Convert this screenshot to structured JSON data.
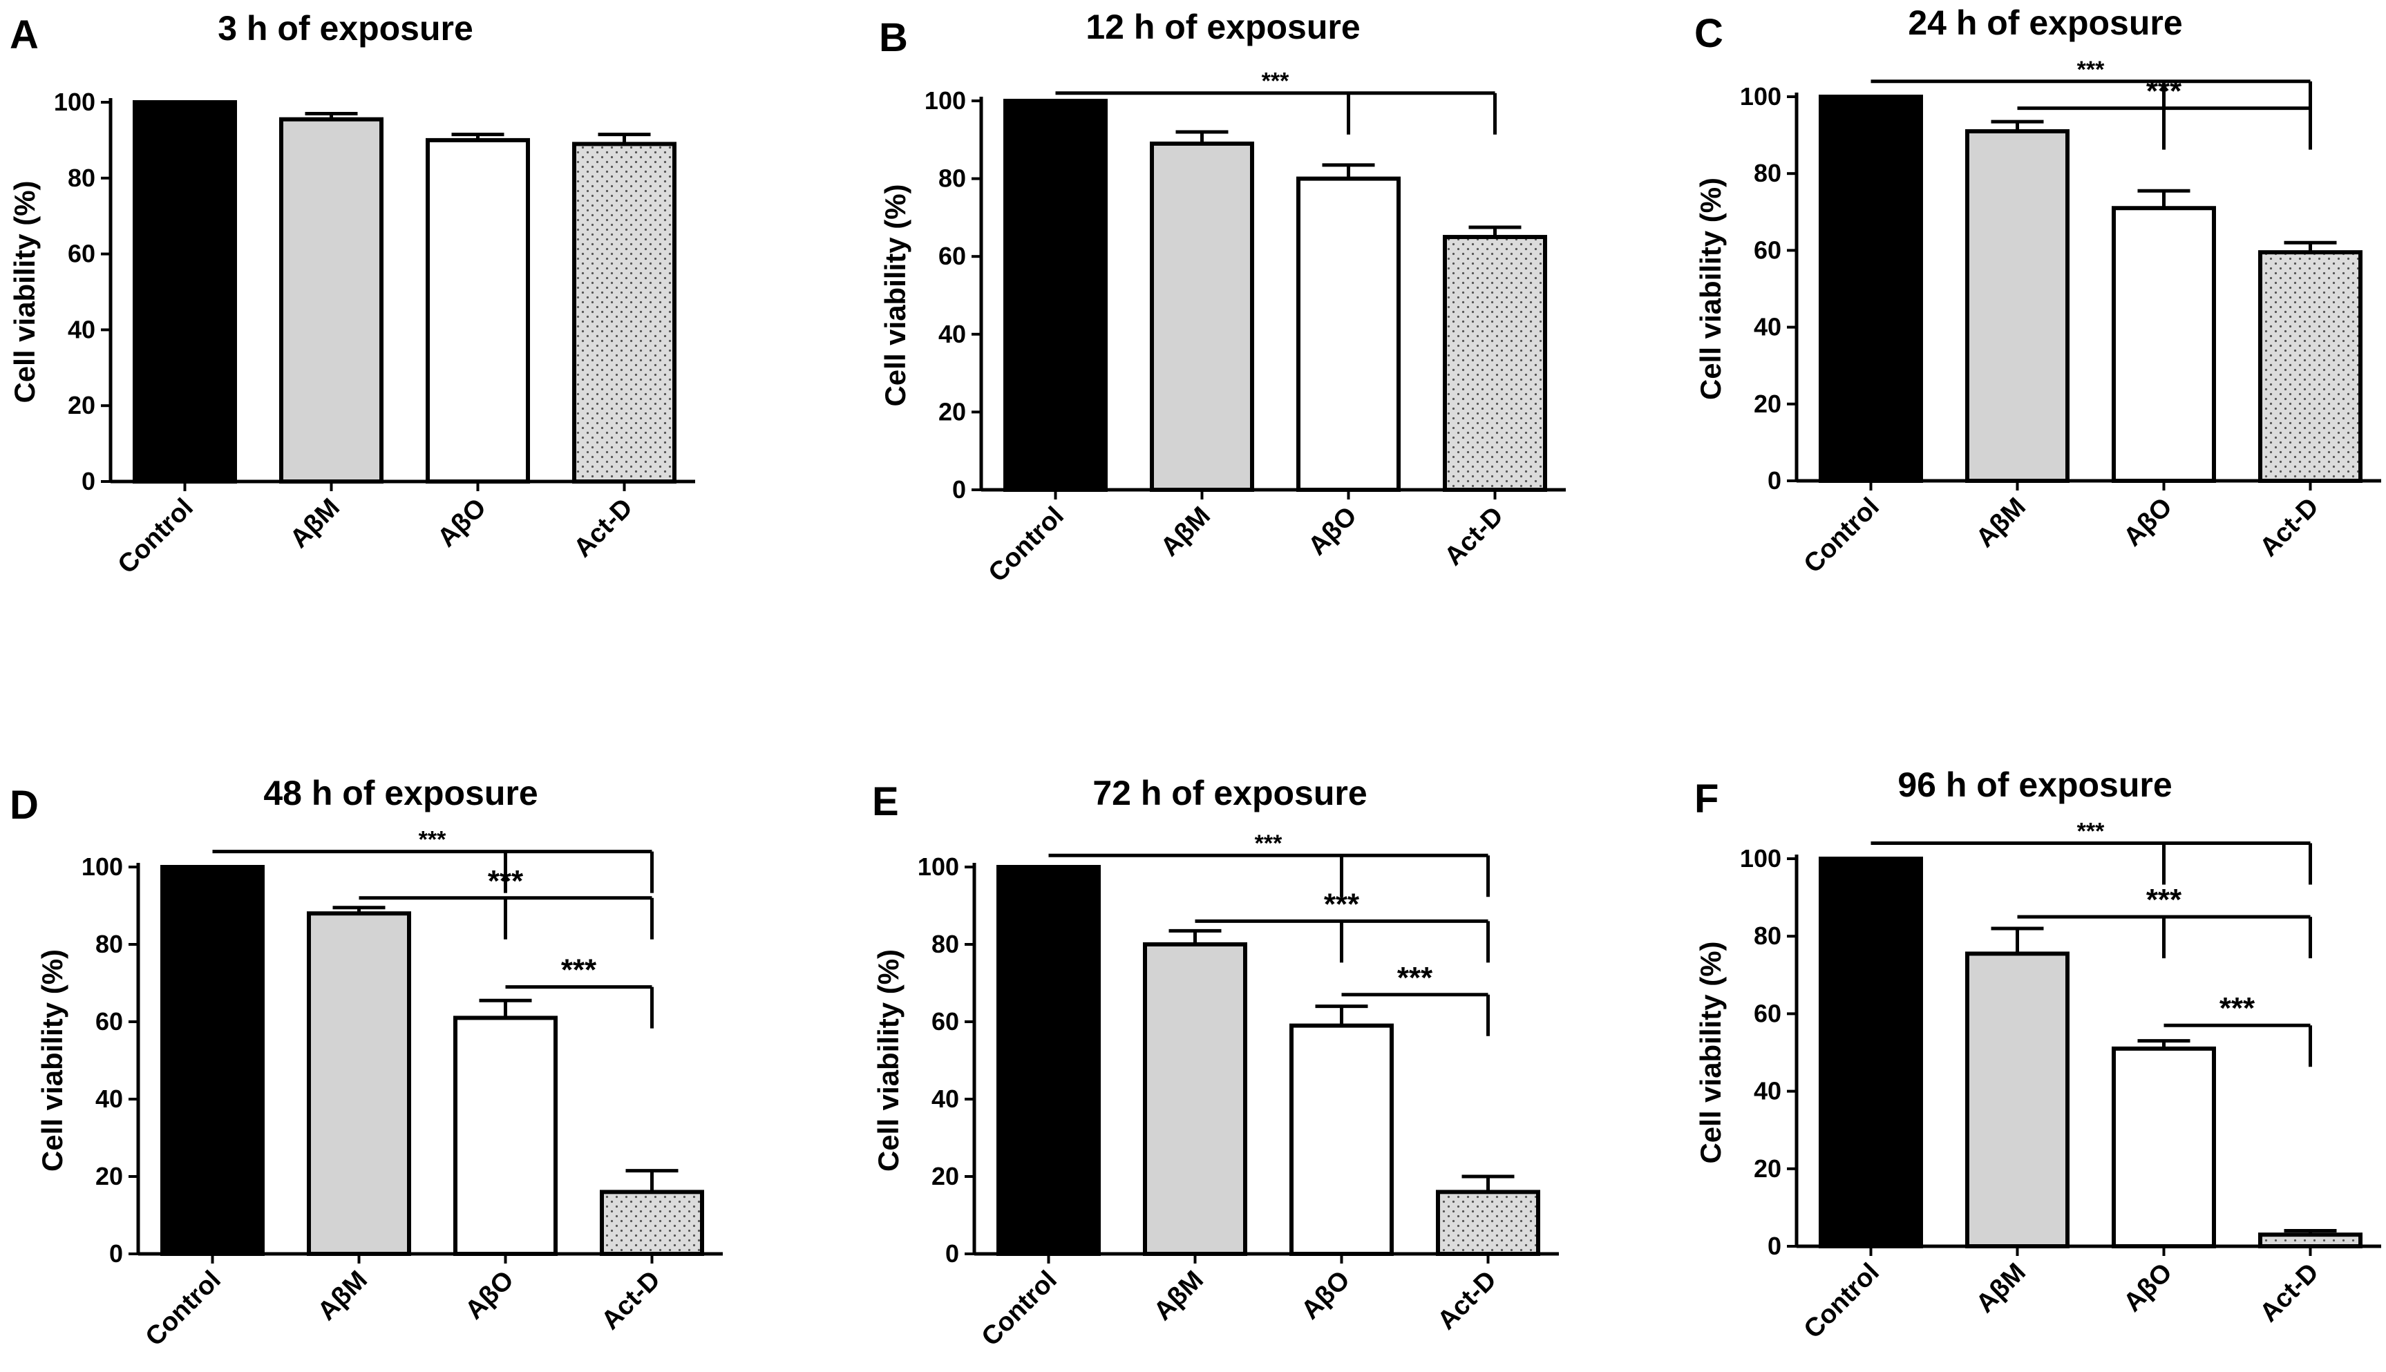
{
  "colors": {
    "control": "#000000",
    "abm": "#d3d3d3",
    "abo": "#ffffff",
    "actd": "#dcdcdc",
    "stroke": "#000000"
  },
  "chart_data": [
    {
      "panel": "A",
      "type": "bar",
      "title": "3 h of exposure",
      "ylabel": "Cell viability (%)",
      "xlabel": "",
      "ylim": [
        0,
        100
      ],
      "yticks": [
        "0",
        "20",
        "40",
        "60",
        "80",
        "100"
      ],
      "categories": [
        "Control",
        "AβM",
        "AβO",
        "Act-D"
      ],
      "values": [
        100,
        95.5,
        90,
        89
      ],
      "errors": [
        0,
        1.5,
        1.5,
        2.5
      ],
      "significance": []
    },
    {
      "panel": "B",
      "type": "bar",
      "title": "12 h of exposure",
      "ylabel": "Cell viability (%)",
      "xlabel": "",
      "ylim": [
        0,
        100
      ],
      "yticks": [
        "0",
        "20",
        "40",
        "60",
        "80",
        "100"
      ],
      "categories": [
        "Control",
        "AβM",
        "AβO",
        "Act-D"
      ],
      "values": [
        100,
        89,
        80,
        65
      ],
      "errors": [
        0,
        3,
        3.5,
        2.5
      ],
      "significance": [
        {
          "from": 0,
          "to": 3,
          "drops": [
            2,
            3
          ],
          "level": 102,
          "label": "***"
        }
      ]
    },
    {
      "panel": "C",
      "type": "bar",
      "title": "24 h of exposure",
      "ylabel": "Cell viability (%)",
      "xlabel": "",
      "ylim": [
        0,
        100
      ],
      "yticks": [
        "0",
        "20",
        "40",
        "60",
        "80",
        "100"
      ],
      "categories": [
        "Control",
        "AβM",
        "AβO",
        "Act-D"
      ],
      "values": [
        100,
        91,
        71,
        59.5
      ],
      "errors": [
        0,
        2.5,
        4.5,
        2.5
      ],
      "significance": [
        {
          "from": 0,
          "to": 3,
          "drops": [
            2,
            3
          ],
          "level": 104,
          "label": "***"
        },
        {
          "from": 1,
          "to": 3,
          "drops": [
            2,
            3
          ],
          "level": 97,
          "label": "***"
        }
      ]
    },
    {
      "panel": "D",
      "type": "bar",
      "title": "48 h of exposure",
      "ylabel": "Cell viability (%)",
      "xlabel": "",
      "ylim": [
        0,
        100
      ],
      "yticks": [
        "0",
        "20",
        "40",
        "60",
        "80",
        "100"
      ],
      "categories": [
        "Control",
        "AβM",
        "AβO",
        "Act-D"
      ],
      "values": [
        100,
        88,
        61,
        16
      ],
      "errors": [
        0,
        1.5,
        4.5,
        5.5
      ],
      "significance": [
        {
          "from": 0,
          "to": 3,
          "drops": [
            2,
            3
          ],
          "level": 104,
          "label": "***"
        },
        {
          "from": 1,
          "to": 3,
          "drops": [
            2,
            3
          ],
          "level": 92,
          "label": "***"
        },
        {
          "from": 2,
          "to": 3,
          "drops": [
            3
          ],
          "level": 69,
          "label": "***"
        }
      ]
    },
    {
      "panel": "E",
      "type": "bar",
      "title": "72 h of exposure",
      "ylabel": "Cell viability (%)",
      "xlabel": "",
      "ylim": [
        0,
        100
      ],
      "yticks": [
        "0",
        "20",
        "40",
        "60",
        "80",
        "100"
      ],
      "categories": [
        "Control",
        "AβM",
        "AβO",
        "Act-D"
      ],
      "values": [
        100,
        80,
        59,
        16
      ],
      "errors": [
        0,
        3.5,
        5,
        4
      ],
      "significance": [
        {
          "from": 0,
          "to": 3,
          "drops": [
            2,
            3
          ],
          "level": 103,
          "label": "***"
        },
        {
          "from": 1,
          "to": 3,
          "drops": [
            2,
            3
          ],
          "level": 86,
          "label": "***"
        },
        {
          "from": 2,
          "to": 3,
          "drops": [
            3
          ],
          "level": 67,
          "label": "***"
        }
      ]
    },
    {
      "panel": "F",
      "type": "bar",
      "title": "96 h of exposure",
      "ylabel": "Cell viability (%)",
      "xlabel": "",
      "ylim": [
        0,
        100
      ],
      "yticks": [
        "0",
        "20",
        "40",
        "60",
        "80",
        "100"
      ],
      "categories": [
        "Control",
        "AβM",
        "AβO",
        "Act-D"
      ],
      "values": [
        100,
        75.5,
        51,
        3
      ],
      "errors": [
        0,
        6.5,
        2,
        1
      ],
      "significance": [
        {
          "from": 0,
          "to": 3,
          "drops": [
            2,
            3
          ],
          "level": 104,
          "label": "***"
        },
        {
          "from": 1,
          "to": 3,
          "drops": [
            2,
            3
          ],
          "level": 85,
          "label": "***"
        },
        {
          "from": 2,
          "to": 3,
          "drops": [
            3
          ],
          "level": 57,
          "label": "***"
        }
      ]
    }
  ]
}
